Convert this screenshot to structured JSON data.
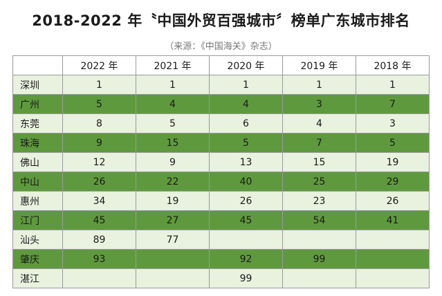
{
  "title": "2018-2022 年〝中国外贸百强城市〞榜单广东城市排名",
  "source": "（来源：《中国海关》杂志）",
  "columns": [
    "2022 年",
    "2021 年",
    "2020 年",
    "2019 年",
    "2018 年"
  ],
  "rows": [
    {
      "city": "深圳",
      "values": [
        "1",
        "1",
        "1",
        "1",
        "1"
      ]
    },
    {
      "city": "广州",
      "values": [
        "5",
        "4",
        "4",
        "3",
        "7"
      ]
    },
    {
      "city": "东莞",
      "values": [
        "8",
        "5",
        "6",
        "4",
        "3"
      ]
    },
    {
      "city": "珠海",
      "values": [
        "9",
        "15",
        "5",
        "7",
        "5"
      ]
    },
    {
      "city": "佛山",
      "values": [
        "12",
        "9",
        "13",
        "15",
        "19"
      ]
    },
    {
      "city": "中山",
      "values": [
        "26",
        "22",
        "40",
        "25",
        "29"
      ]
    },
    {
      "city": "惠州",
      "values": [
        "34",
        "19",
        "26",
        "23",
        "26"
      ]
    },
    {
      "city": "江门",
      "values": [
        "45",
        "27",
        "45",
        "54",
        "41"
      ]
    },
    {
      "city": "汕头",
      "values": [
        "89",
        "77",
        "",
        "",
        ""
      ]
    },
    {
      "city": "肇庆",
      "values": [
        "93",
        "",
        "92",
        "99",
        ""
      ]
    },
    {
      "city": "湛江",
      "values": [
        "",
        "",
        "99",
        "",
        ""
      ]
    }
  ],
  "colors": {
    "row_light": "#e9f1df",
    "row_dark": "#5e9a3d",
    "border": "#9a9a9a"
  }
}
